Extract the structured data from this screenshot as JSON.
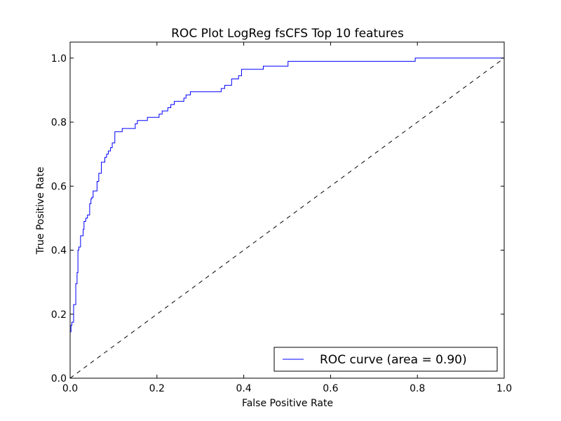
{
  "chart_data": {
    "type": "line",
    "title": "ROC Plot LogReg fsCFS Top 10 features",
    "xlabel": "False Positive Rate",
    "ylabel": "True Positive Rate",
    "xlim": [
      0.0,
      1.0
    ],
    "ylim": [
      0.0,
      1.05
    ],
    "xticks": [
      "0.0",
      "0.2",
      "0.4",
      "0.6",
      "0.8",
      "1.0"
    ],
    "yticks": [
      "0.0",
      "0.2",
      "0.4",
      "0.6",
      "0.8",
      "1.0"
    ],
    "grid": false,
    "legend_position": "lower-right",
    "series": [
      {
        "name": "ROC curve (area = 0.90)",
        "color": "#0000ff",
        "style": "solid",
        "x": [
          0.0,
          0.0,
          0.002,
          0.002,
          0.004,
          0.004,
          0.008,
          0.008,
          0.013,
          0.013,
          0.016,
          0.016,
          0.018,
          0.018,
          0.02,
          0.02,
          0.024,
          0.024,
          0.03,
          0.03,
          0.032,
          0.032,
          0.036,
          0.036,
          0.04,
          0.04,
          0.045,
          0.045,
          0.048,
          0.048,
          0.05,
          0.05,
          0.053,
          0.053,
          0.062,
          0.062,
          0.066,
          0.066,
          0.072,
          0.072,
          0.08,
          0.08,
          0.084,
          0.084,
          0.088,
          0.088,
          0.093,
          0.093,
          0.097,
          0.097,
          0.103,
          0.103,
          0.12,
          0.12,
          0.15,
          0.15,
          0.155,
          0.155,
          0.178,
          0.178,
          0.205,
          0.205,
          0.212,
          0.212,
          0.225,
          0.225,
          0.232,
          0.232,
          0.24,
          0.24,
          0.262,
          0.262,
          0.267,
          0.267,
          0.277,
          0.277,
          0.348,
          0.348,
          0.356,
          0.356,
          0.372,
          0.372,
          0.388,
          0.388,
          0.395,
          0.395,
          0.445,
          0.445,
          0.502,
          0.502,
          0.795,
          0.795,
          1.0
        ],
        "y": [
          0.0,
          0.145,
          0.145,
          0.165,
          0.165,
          0.175,
          0.175,
          0.23,
          0.23,
          0.295,
          0.295,
          0.33,
          0.33,
          0.4,
          0.4,
          0.41,
          0.41,
          0.445,
          0.445,
          0.465,
          0.465,
          0.49,
          0.49,
          0.5,
          0.5,
          0.51,
          0.51,
          0.545,
          0.545,
          0.56,
          0.56,
          0.565,
          0.565,
          0.585,
          0.585,
          0.615,
          0.615,
          0.64,
          0.64,
          0.675,
          0.675,
          0.69,
          0.69,
          0.7,
          0.7,
          0.71,
          0.71,
          0.72,
          0.72,
          0.735,
          0.735,
          0.77,
          0.77,
          0.78,
          0.78,
          0.795,
          0.795,
          0.805,
          0.805,
          0.815,
          0.815,
          0.825,
          0.825,
          0.835,
          0.835,
          0.845,
          0.845,
          0.855,
          0.855,
          0.865,
          0.865,
          0.875,
          0.875,
          0.885,
          0.885,
          0.895,
          0.895,
          0.905,
          0.905,
          0.915,
          0.915,
          0.935,
          0.935,
          0.945,
          0.945,
          0.965,
          0.965,
          0.975,
          0.975,
          0.99,
          0.99,
          1.0,
          1.0
        ]
      },
      {
        "color": "#000000",
        "style": "dashed",
        "x": [
          0.0,
          1.0
        ],
        "y": [
          0.0,
          1.0
        ]
      }
    ],
    "legend_entry": "ROC curve (area = 0.90)"
  }
}
